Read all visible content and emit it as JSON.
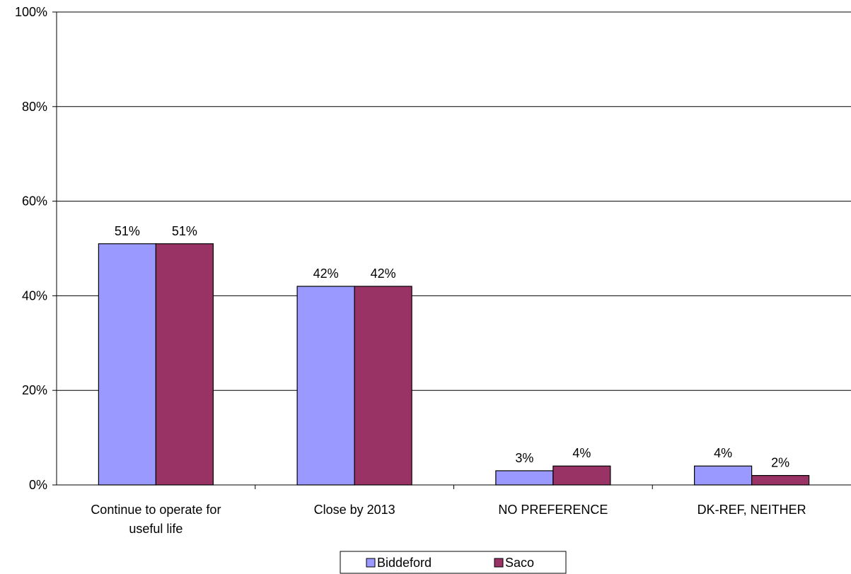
{
  "colors": {
    "biddeford": "#9999ff",
    "saco": "#993366",
    "gridline": "#000000",
    "border": "#000000"
  },
  "chart_data": {
    "type": "bar",
    "categories": [
      [
        "Continue to operate for",
        "useful life"
      ],
      [
        "Close by 2013"
      ],
      [
        "NO PREFERENCE"
      ],
      [
        "DK-REF, NEITHER"
      ]
    ],
    "series": [
      {
        "name": "Biddeford",
        "values": [
          51,
          42,
          3,
          4
        ],
        "labels": [
          "51%",
          "42%",
          "3%",
          "4%"
        ]
      },
      {
        "name": "Saco",
        "values": [
          51,
          42,
          4,
          2
        ],
        "labels": [
          "51%",
          "42%",
          "4%",
          "2%"
        ]
      }
    ],
    "value_format": "percent",
    "ylim": [
      0,
      100
    ],
    "yticks": [
      0,
      20,
      40,
      60,
      80,
      100
    ],
    "ytick_labels": [
      "0%",
      "20%",
      "40%",
      "60%",
      "80%",
      "100%"
    ],
    "grid": true,
    "legend": "bottom-center"
  }
}
